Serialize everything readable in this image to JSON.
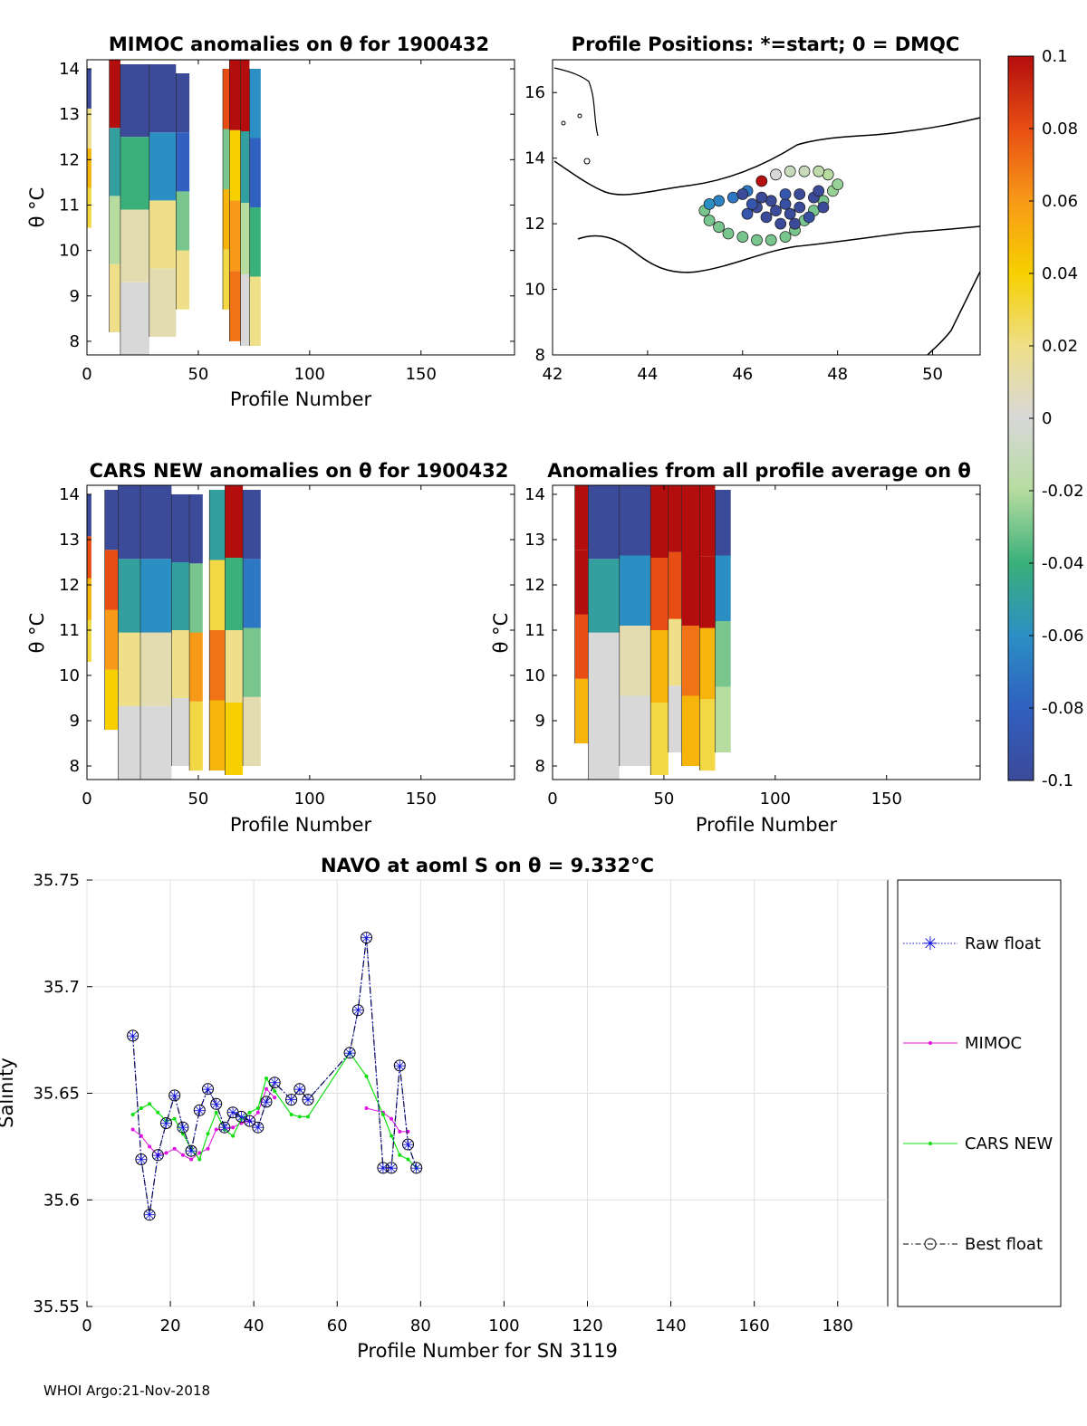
{
  "footer": "WHOI Argo:21-Nov-2018",
  "colorbar": {
    "ticks": [
      "0.1",
      "0.08",
      "0.06",
      "0.04",
      "0.02",
      "0",
      "-0.02",
      "-0.04",
      "-0.06",
      "-0.08",
      "-0.1"
    ],
    "range": [
      -0.1,
      0.1
    ]
  },
  "panels": {
    "mimoc": {
      "title": "MIMOC anomalies on θ  for 1900432",
      "xlabel": "Profile Number",
      "ylabel": "θ °C",
      "xticks": [
        "0",
        "50",
        "100",
        "150"
      ],
      "yticks": [
        "14",
        "13",
        "12",
        "11",
        "10",
        "9",
        "8"
      ]
    },
    "positions": {
      "title": "Profile Positions: *=start; 0 = DMQC",
      "xticks": [
        "42",
        "44",
        "46",
        "48",
        "50"
      ],
      "yticks": [
        "16",
        "14",
        "12",
        "10",
        "8"
      ]
    },
    "cars": {
      "title": "CARS NEW anomalies on θ for 1900432",
      "xlabel": "Profile Number",
      "ylabel": "θ °C",
      "xticks": [
        "0",
        "50",
        "100",
        "150"
      ],
      "yticks": [
        "14",
        "13",
        "12",
        "11",
        "10",
        "9",
        "8"
      ]
    },
    "average": {
      "title": "Anomalies from all profile average on θ",
      "xlabel": "Profile Number",
      "ylabel": "θ °C",
      "xticks": [
        "0",
        "50",
        "100",
        "150"
      ],
      "yticks": [
        "14",
        "13",
        "12",
        "11",
        "10",
        "9",
        "8"
      ]
    },
    "salinity": {
      "title": "NAVO at aoml S on θ = 9.332°C",
      "xlabel": "Profile Number for SN 3119",
      "ylabel": "Salinity",
      "xticks": [
        "0",
        "20",
        "40",
        "60",
        "80",
        "100",
        "120",
        "140",
        "160",
        "180"
      ],
      "yticks": [
        "35.75",
        "35.7",
        "35.65",
        "35.6",
        "35.55"
      ]
    }
  },
  "legend": {
    "raw": "Raw float",
    "mimoc": "MIMOC",
    "cars": "CARS NEW",
    "best": "Best float"
  },
  "chart_data": [
    {
      "type": "heatmap",
      "title": "MIMOC anomalies on θ  for 1900432",
      "xlabel": "Profile Number",
      "ylabel": "θ °C",
      "xlim": [
        0,
        192
      ],
      "ylim": [
        7.7,
        14.2
      ],
      "zlim": [
        -0.1,
        0.1
      ],
      "columns": [
        {
          "from": 0,
          "to": 2,
          "lo": 10.5,
          "hi": 14.0,
          "band": [
            0.03,
            0.05,
            0.02,
            -0.1
          ]
        },
        {
          "from": 10,
          "to": 15,
          "lo": 8.2,
          "hi": 14.2,
          "band": [
            0.02,
            -0.02,
            -0.05,
            0.1
          ]
        },
        {
          "from": 15,
          "to": 28,
          "lo": 7.7,
          "hi": 14.1,
          "band": [
            0.0,
            0.01,
            -0.04,
            -0.1
          ]
        },
        {
          "from": 28,
          "to": 40,
          "lo": 8.1,
          "hi": 14.1,
          "band": [
            0.01,
            0.02,
            -0.06,
            -0.1
          ]
        },
        {
          "from": 40,
          "to": 46,
          "lo": 8.7,
          "hi": 13.9,
          "band": [
            0.02,
            -0.03,
            -0.08,
            -0.1
          ]
        },
        {
          "from": 61,
          "to": 64,
          "lo": 8.7,
          "hi": 14.0,
          "band": [
            0.03,
            0.05,
            -0.03,
            0.08
          ]
        },
        {
          "from": 64,
          "to": 69,
          "lo": 8.0,
          "hi": 14.2,
          "band": [
            0.07,
            0.06,
            0.04,
            0.1
          ]
        },
        {
          "from": 69,
          "to": 73,
          "lo": 7.9,
          "hi": 14.2,
          "band": [
            0.0,
            -0.02,
            -0.05,
            0.1
          ]
        },
        {
          "from": 73,
          "to": 78,
          "lo": 7.9,
          "hi": 14.0,
          "band": [
            0.02,
            -0.04,
            -0.08,
            -0.06
          ]
        }
      ]
    },
    {
      "type": "scatter",
      "title": "Profile Positions: *=start; 0 = DMQC",
      "xlim": [
        42,
        51
      ],
      "ylim": [
        8,
        17
      ],
      "start": [
        45.8,
        12.1
      ],
      "points": [
        [
          45.2,
          12.4
        ],
        [
          45.3,
          12.1
        ],
        [
          45.5,
          11.9
        ],
        [
          45.7,
          11.7
        ],
        [
          46.0,
          11.6
        ],
        [
          46.3,
          11.5
        ],
        [
          46.6,
          11.5
        ],
        [
          46.9,
          11.6
        ],
        [
          47.1,
          11.8
        ],
        [
          47.3,
          12.1
        ],
        [
          47.5,
          12.4
        ],
        [
          47.7,
          12.7
        ],
        [
          47.9,
          13.0
        ],
        [
          48.0,
          13.2
        ],
        [
          47.8,
          13.5
        ],
        [
          47.6,
          13.6
        ],
        [
          47.3,
          13.6
        ],
        [
          47.0,
          13.6
        ],
        [
          46.7,
          13.5
        ],
        [
          46.4,
          13.3
        ],
        [
          46.1,
          13.0
        ],
        [
          45.8,
          12.8
        ],
        [
          45.5,
          12.7
        ],
        [
          45.3,
          12.6
        ],
        [
          46.1,
          12.3
        ],
        [
          46.3,
          12.5
        ],
        [
          46.5,
          12.2
        ],
        [
          46.7,
          12.4
        ],
        [
          46.9,
          12.6
        ],
        [
          47.2,
          12.5
        ],
        [
          47.5,
          12.8
        ],
        [
          47.7,
          12.5
        ],
        [
          47.4,
          12.2
        ],
        [
          47.1,
          12.0
        ],
        [
          46.8,
          12.0
        ],
        [
          46.6,
          12.7
        ],
        [
          46.9,
          12.9
        ],
        [
          47.2,
          12.9
        ],
        [
          47.6,
          13.0
        ],
        [
          46.4,
          12.8
        ],
        [
          46.2,
          12.6
        ],
        [
          46.0,
          12.9
        ],
        [
          47.0,
          12.3
        ]
      ],
      "values": [
        -0.03,
        -0.03,
        -0.03,
        -0.03,
        -0.03,
        -0.03,
        -0.03,
        -0.03,
        -0.03,
        -0.03,
        -0.03,
        -0.03,
        -0.025,
        -0.025,
        -0.02,
        -0.015,
        -0.01,
        -0.01,
        0.0,
        0.1,
        -0.07,
        -0.07,
        -0.065,
        -0.06,
        -0.09,
        -0.1,
        -0.1,
        -0.1,
        -0.095,
        -0.1,
        -0.1,
        -0.1,
        -0.095,
        -0.1,
        -0.1,
        -0.1,
        -0.09,
        -0.1,
        -0.1,
        -0.1,
        -0.09,
        -0.1,
        -0.1
      ]
    },
    {
      "type": "heatmap",
      "title": "CARS NEW anomalies on θ for 1900432",
      "xlabel": "Profile Number",
      "ylabel": "θ °C",
      "xlim": [
        0,
        192
      ],
      "ylim": [
        7.7,
        14.2
      ],
      "zlim": [
        -0.1,
        0.1
      ],
      "columns": [
        {
          "from": 0,
          "to": 2,
          "lo": 10.3,
          "hi": 14.0,
          "band": [
            0.03,
            0.05,
            0.08,
            -0.1
          ]
        },
        {
          "from": 8,
          "to": 14,
          "lo": 8.8,
          "hi": 14.1,
          "band": [
            0.04,
            0.06,
            0.08,
            -0.1
          ]
        },
        {
          "from": 14,
          "to": 24,
          "lo": 7.7,
          "hi": 14.2,
          "band": [
            0.0,
            0.02,
            -0.05,
            -0.1
          ]
        },
        {
          "from": 24,
          "to": 38,
          "lo": 7.7,
          "hi": 14.2,
          "band": [
            0.0,
            0.01,
            -0.06,
            -0.1
          ]
        },
        {
          "from": 38,
          "to": 46,
          "lo": 8.0,
          "hi": 14.0,
          "band": [
            0.0,
            0.02,
            -0.05,
            -0.1
          ]
        },
        {
          "from": 46,
          "to": 52,
          "lo": 7.9,
          "hi": 14.0,
          "band": [
            0.03,
            0.06,
            -0.03,
            -0.1
          ]
        },
        {
          "from": 55,
          "to": 62,
          "lo": 7.9,
          "hi": 14.1,
          "band": [
            0.05,
            0.07,
            0.03,
            -0.05
          ]
        },
        {
          "from": 62,
          "to": 70,
          "lo": 7.8,
          "hi": 14.2,
          "band": [
            0.04,
            0.02,
            -0.04,
            0.1
          ]
        },
        {
          "from": 70,
          "to": 78,
          "lo": 8.0,
          "hi": 14.1,
          "band": [
            0.01,
            -0.03,
            -0.07,
            -0.1
          ]
        }
      ]
    },
    {
      "type": "heatmap",
      "title": "Anomalies from all profile average on θ",
      "xlabel": "Profile Number",
      "ylabel": "θ °C",
      "xlim": [
        0,
        192
      ],
      "ylim": [
        7.7,
        14.2
      ],
      "zlim": [
        -0.1,
        0.1
      ],
      "columns": [
        {
          "from": 10,
          "to": 16,
          "lo": 8.5,
          "hi": 14.2,
          "band": [
            0.05,
            0.08,
            0.1,
            0.1
          ]
        },
        {
          "from": 16,
          "to": 30,
          "lo": 7.7,
          "hi": 14.2,
          "band": [
            0.0,
            0.0,
            -0.05,
            -0.1
          ]
        },
        {
          "from": 30,
          "to": 44,
          "lo": 8.0,
          "hi": 14.2,
          "band": [
            0.0,
            0.01,
            -0.06,
            -0.1
          ]
        },
        {
          "from": 44,
          "to": 52,
          "lo": 7.8,
          "hi": 14.2,
          "band": [
            0.03,
            0.05,
            0.08,
            0.1
          ]
        },
        {
          "from": 52,
          "to": 58,
          "lo": 8.3,
          "hi": 14.2,
          "band": [
            0.0,
            0.02,
            0.08,
            0.1
          ]
        },
        {
          "from": 58,
          "to": 66,
          "lo": 8.0,
          "hi": 14.2,
          "band": [
            0.05,
            0.07,
            0.1,
            0.1
          ]
        },
        {
          "from": 66,
          "to": 73,
          "lo": 7.9,
          "hi": 14.2,
          "band": [
            0.03,
            0.05,
            0.1,
            0.1
          ]
        },
        {
          "from": 73,
          "to": 80,
          "lo": 8.3,
          "hi": 14.1,
          "band": [
            -0.02,
            -0.03,
            -0.06,
            -0.1
          ]
        }
      ]
    },
    {
      "type": "line",
      "title": "NAVO at aoml S on θ = 9.332°C",
      "xlabel": "Profile Number for SN 3119",
      "ylabel": "Salinity",
      "xlim": [
        0,
        192
      ],
      "ylim": [
        35.55,
        35.75
      ],
      "series": [
        {
          "name": "Raw float",
          "x": [
            11,
            13,
            15,
            17,
            19,
            21,
            23,
            25,
            27,
            29,
            31,
            33,
            35,
            37,
            39,
            41,
            43,
            45,
            49,
            51,
            53,
            63,
            65,
            67,
            71,
            73,
            75,
            77,
            79
          ],
          "y": [
            35.677,
            35.619,
            35.593,
            35.621,
            35.636,
            35.649,
            35.634,
            35.623,
            35.642,
            35.652,
            35.645,
            35.634,
            35.641,
            35.639,
            35.637,
            35.634,
            35.646,
            35.655,
            35.647,
            35.652,
            35.647,
            35.669,
            35.689,
            35.723,
            35.615,
            35.615,
            35.663,
            35.626,
            35.615
          ]
        },
        {
          "name": "MIMOC",
          "x": [
            11,
            13,
            15,
            17,
            19,
            21,
            23,
            25,
            27,
            29,
            31,
            33,
            35,
            37,
            39,
            41,
            43,
            45,
            67,
            71,
            73,
            75,
            77
          ],
          "y": [
            35.633,
            35.63,
            35.625,
            35.621,
            35.622,
            35.624,
            35.621,
            35.619,
            35.622,
            35.624,
            35.633,
            35.633,
            35.634,
            35.636,
            35.637,
            35.641,
            35.652,
            35.648,
            35.643,
            35.641,
            35.638,
            35.632,
            35.632
          ]
        },
        {
          "name": "CARS NEW",
          "x": [
            11,
            13,
            15,
            17,
            19,
            21,
            23,
            25,
            27,
            29,
            31,
            33,
            35,
            37,
            39,
            41,
            43,
            45,
            49,
            51,
            53,
            63,
            67,
            71,
            73,
            75,
            77,
            79
          ],
          "y": [
            35.64,
            35.643,
            35.645,
            35.641,
            35.637,
            35.638,
            35.631,
            35.624,
            35.619,
            35.631,
            35.641,
            35.633,
            35.63,
            35.638,
            35.641,
            35.643,
            35.657,
            35.651,
            35.64,
            35.639,
            35.639,
            35.669,
            35.658,
            35.64,
            35.63,
            35.621,
            35.619,
            35.615
          ]
        },
        {
          "name": "Best float",
          "x": [
            11,
            13,
            15,
            17,
            19,
            21,
            23,
            25,
            27,
            29,
            31,
            33,
            35,
            37,
            39,
            41,
            43,
            45,
            49,
            51,
            53,
            63,
            65,
            67,
            71,
            73,
            75,
            77,
            79
          ],
          "y": [
            35.677,
            35.619,
            35.593,
            35.621,
            35.636,
            35.649,
            35.634,
            35.623,
            35.642,
            35.652,
            35.645,
            35.634,
            35.641,
            35.639,
            35.637,
            35.634,
            35.646,
            35.655,
            35.647,
            35.652,
            35.647,
            35.669,
            35.689,
            35.723,
            35.615,
            35.615,
            35.663,
            35.626,
            35.615
          ]
        }
      ]
    }
  ]
}
